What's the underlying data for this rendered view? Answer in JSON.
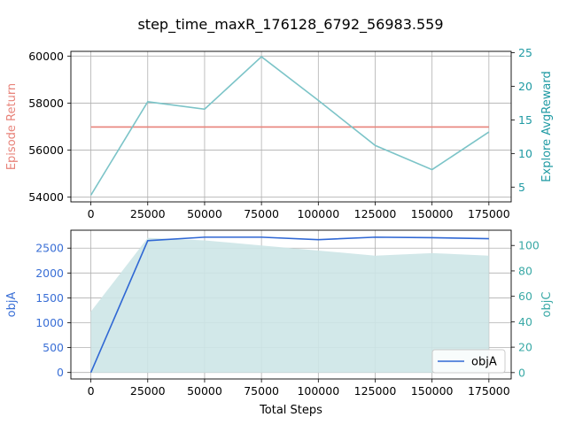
{
  "title": "step_time_maxR_176128_6792_56983.559",
  "colors": {
    "episode_return": "#e8837a",
    "explore_reward": "#7cc4c8",
    "explore_axis": "#1f9aa3",
    "objA": "#3068d4",
    "objA_axis": "#3a6fd6",
    "objC_fill": "#cde6e7",
    "objC_axis": "#3aa9a6",
    "grid": "#b0b0b0"
  },
  "chart_data": [
    {
      "type": "line",
      "xlabel": "",
      "ylabel": "Episode Return",
      "y2label": "Explore AvgReward",
      "xlim": [
        -8800,
        184800
      ],
      "ylim": [
        53800,
        60200
      ],
      "y2lim": [
        2.8,
        25.2
      ],
      "x_ticks": [
        0,
        25000,
        50000,
        75000,
        100000,
        125000,
        150000,
        175000
      ],
      "y_ticks": [
        54000,
        56000,
        58000,
        60000
      ],
      "y2_ticks": [
        5,
        10,
        15,
        20,
        25
      ],
      "grid": true,
      "series": [
        {
          "axis": "left",
          "x": [
            0,
            175000
          ],
          "values": [
            56984,
            56984
          ]
        },
        {
          "axis": "right",
          "x": [
            0,
            25000,
            50000,
            75000,
            100000,
            125000,
            150000,
            175000
          ],
          "values": [
            3.8,
            17.7,
            16.6,
            24.4,
            17.9,
            11.2,
            7.6,
            13.2
          ]
        }
      ]
    },
    {
      "type": "line",
      "xlabel": "Total Steps",
      "ylabel": "objA",
      "y2label": "objC",
      "xlim": [
        -8800,
        184800
      ],
      "ylim": [
        -130,
        2860
      ],
      "y2lim": [
        -5,
        112
      ],
      "x_ticks": [
        0,
        25000,
        50000,
        75000,
        100000,
        125000,
        150000,
        175000
      ],
      "y_ticks": [
        0,
        500,
        1000,
        1500,
        2000,
        2500
      ],
      "y2_ticks": [
        0,
        20,
        40,
        60,
        80,
        100
      ],
      "grid": true,
      "legend": "lower-right",
      "series": [
        {
          "name": "objA",
          "axis": "left",
          "x": [
            0,
            25000,
            50000,
            75000,
            100000,
            125000,
            150000,
            175000
          ],
          "values": [
            0,
            2650,
            2720,
            2720,
            2670,
            2720,
            2710,
            2690
          ]
        },
        {
          "axis": "right",
          "kind": "area",
          "x": [
            0,
            25000,
            50000,
            75000,
            100000,
            125000,
            150000,
            175000
          ],
          "values": [
            48,
            106,
            104,
            100,
            96,
            92,
            94,
            92
          ]
        }
      ]
    }
  ]
}
